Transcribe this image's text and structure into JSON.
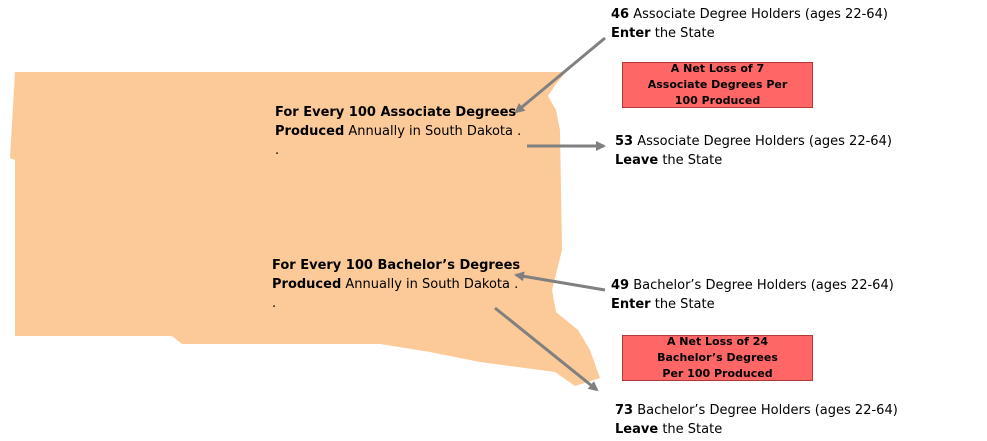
{
  "associate": {
    "intro": {
      "bold": "For Every 100 Associate Degrees Produced",
      "rest": "Annually in South Dakota . ."
    },
    "enter": {
      "count": 46,
      "label": "Associate Degree Holders (ages 22-64)",
      "action": "Enter",
      "rest": "the State"
    },
    "leave": {
      "count": 53,
      "label": "Associate Degree Holders (ages 22-64)",
      "action": "Leave",
      "rest": "the State"
    },
    "net": "A Net Loss of 7 Associate Degrees Per 100 Produced"
  },
  "bachelor": {
    "intro": {
      "bold": "For Every 100 Bachelor’s Degrees Produced",
      "rest": "Annually in South Dakota . ."
    },
    "enter": {
      "count": 49,
      "label": "Bachelor’s Degree Holders (ages 22-64)",
      "action": "Enter",
      "rest": "the State"
    },
    "leave": {
      "count": 73,
      "label": "Bachelor’s Degree Holders (ages 22-64)",
      "action": "Leave",
      "rest": "the State"
    },
    "net": "A Net Loss of 24 Bachelor’s Degrees Per 100 Produced"
  }
}
